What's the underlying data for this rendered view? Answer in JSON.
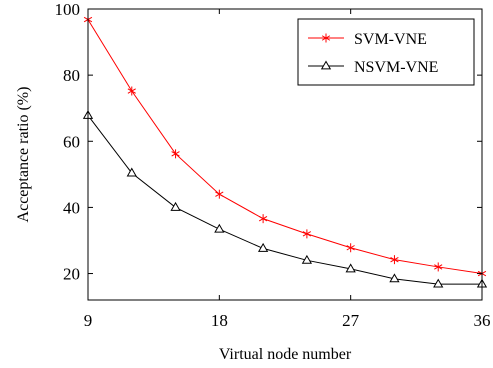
{
  "chart_data": {
    "type": "line",
    "x": [
      9,
      12,
      15,
      18,
      21,
      24,
      27,
      30,
      33,
      36
    ],
    "xlabel": "Virtual node number",
    "ylabel": "Acceptance ratio (%)",
    "xlim": [
      9,
      36
    ],
    "ylim": [
      12,
      100
    ],
    "xticks": [
      9,
      18,
      27,
      36
    ],
    "yticks": [
      20,
      40,
      60,
      80,
      100
    ],
    "grid": false,
    "legend_position": "top-right",
    "series": [
      {
        "name": "SVM-VNE",
        "marker": "star",
        "color": "#ff0000",
        "values": [
          96.8,
          75.2,
          56.2,
          44.0,
          36.6,
          32.0,
          27.8,
          24.2,
          22.0,
          20.0
        ]
      },
      {
        "name": "NSVM-VNE",
        "marker": "triangle",
        "color": "#000000",
        "values": [
          67.8,
          50.4,
          40.0,
          33.4,
          27.6,
          24.0,
          21.4,
          18.4,
          16.8,
          16.8
        ]
      }
    ]
  }
}
